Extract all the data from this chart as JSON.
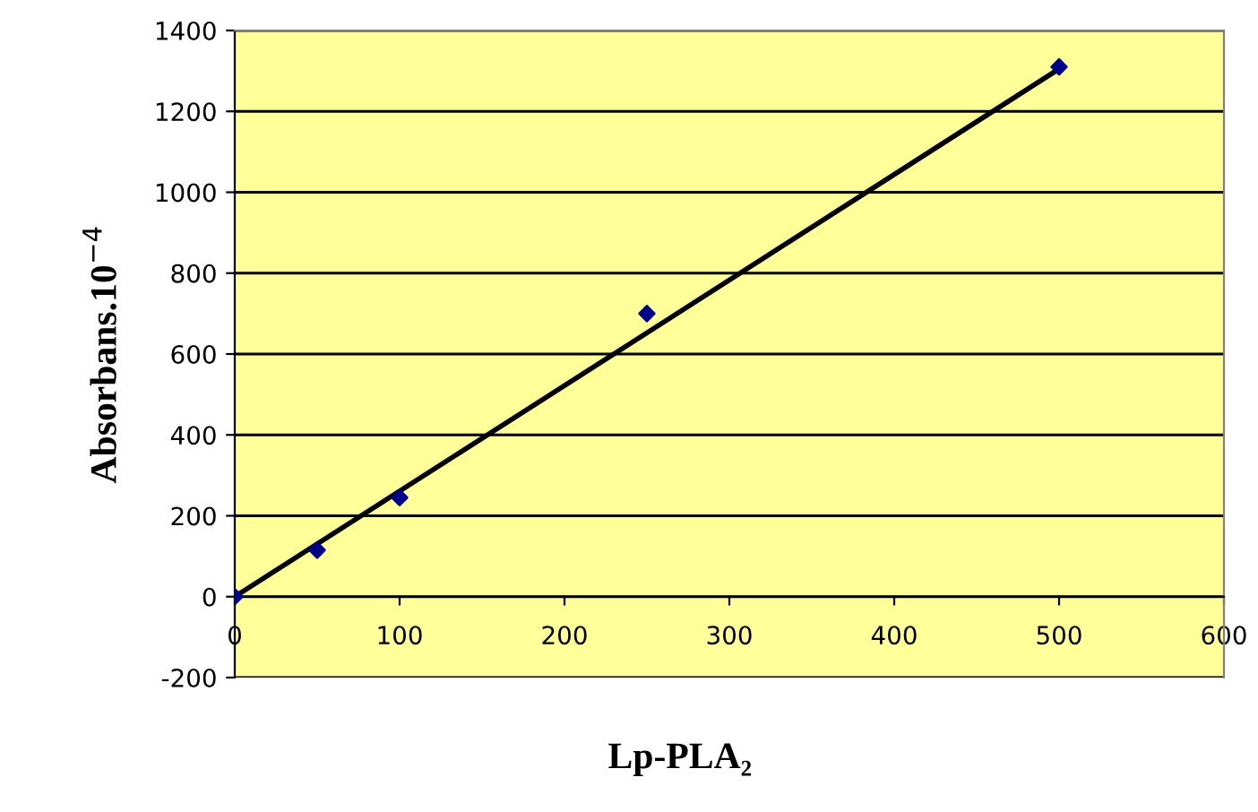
{
  "chart_data": {
    "type": "scatter",
    "xlabel": "Lp-PLA₂",
    "ylabel": "Absorbans.10$^{−4}$",
    "series": [
      {
        "color": "#00008b",
        "marker": "diamond",
        "x": [
          0,
          50,
          100,
          250,
          500
        ],
        "values": [
          0,
          115,
          245,
          700,
          1310
        ]
      },
      {
        "type": "line",
        "color": "#000000",
        "marker": "none",
        "x": [
          0,
          500
        ],
        "values": [
          0,
          1305
        ]
      }
    ],
    "xlim": [
      0,
      600
    ],
    "xticks": [
      0,
      100,
      200,
      300,
      400,
      500,
      600
    ],
    "ylim": [
      -200,
      1400
    ],
    "yticks": [
      -200,
      0,
      200,
      400,
      600,
      800,
      1000,
      1200,
      1400
    ],
    "grid": "y",
    "legend": false
  }
}
